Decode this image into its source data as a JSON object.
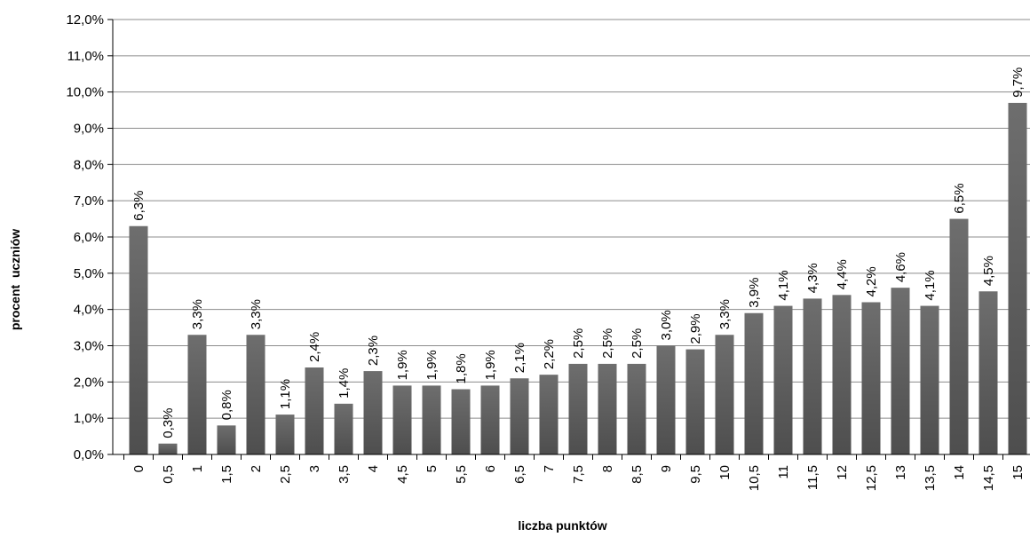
{
  "chart_data": {
    "type": "bar",
    "xlabel": "liczba punktów",
    "ylabel": "procent  uczniów",
    "ylim": [
      0,
      12
    ],
    "y_ticks": [
      "0,0%",
      "1,0%",
      "2,0%",
      "3,0%",
      "4,0%",
      "5,0%",
      "6,0%",
      "7,0%",
      "8,0%",
      "9,0%",
      "10,0%",
      "11,0%",
      "12,0%"
    ],
    "grid": true,
    "bar_color": "#595959",
    "categories": [
      "0",
      "0,5",
      "1",
      "1,5",
      "2",
      "2,5",
      "3",
      "3,5",
      "4",
      "4,5",
      "5",
      "5,5",
      "6",
      "6,5",
      "7",
      "7,5",
      "8",
      "8,5",
      "9",
      "9,5",
      "10",
      "10,5",
      "11",
      "11,5",
      "12",
      "12,5",
      "13",
      "13,5",
      "14",
      "14,5",
      "15"
    ],
    "values": [
      6.3,
      0.3,
      3.3,
      0.8,
      3.3,
      1.1,
      2.4,
      1.4,
      2.3,
      1.9,
      1.9,
      1.8,
      1.9,
      2.1,
      2.2,
      2.5,
      2.5,
      2.5,
      3.0,
      2.9,
      3.3,
      3.9,
      4.1,
      4.3,
      4.4,
      4.2,
      4.6,
      4.1,
      6.5,
      4.5,
      9.7
    ],
    "labels": [
      "6,3%",
      "0,3%",
      "3,3%",
      "0,8%",
      "3,3%",
      "1,1%",
      "2,4%",
      "1,4%",
      "2,3%",
      "1,9%",
      "1,9%",
      "1,8%",
      "1,9%",
      "2,1%",
      "2,2%",
      "2,5%",
      "2,5%",
      "2,5%",
      "3,0%",
      "2,9%",
      "3,3%",
      "3,9%",
      "4,1%",
      "4,3%",
      "4,4%",
      "4,2%",
      "4,6%",
      "4,1%",
      "6,5%",
      "4,5%",
      "9,7%"
    ]
  }
}
